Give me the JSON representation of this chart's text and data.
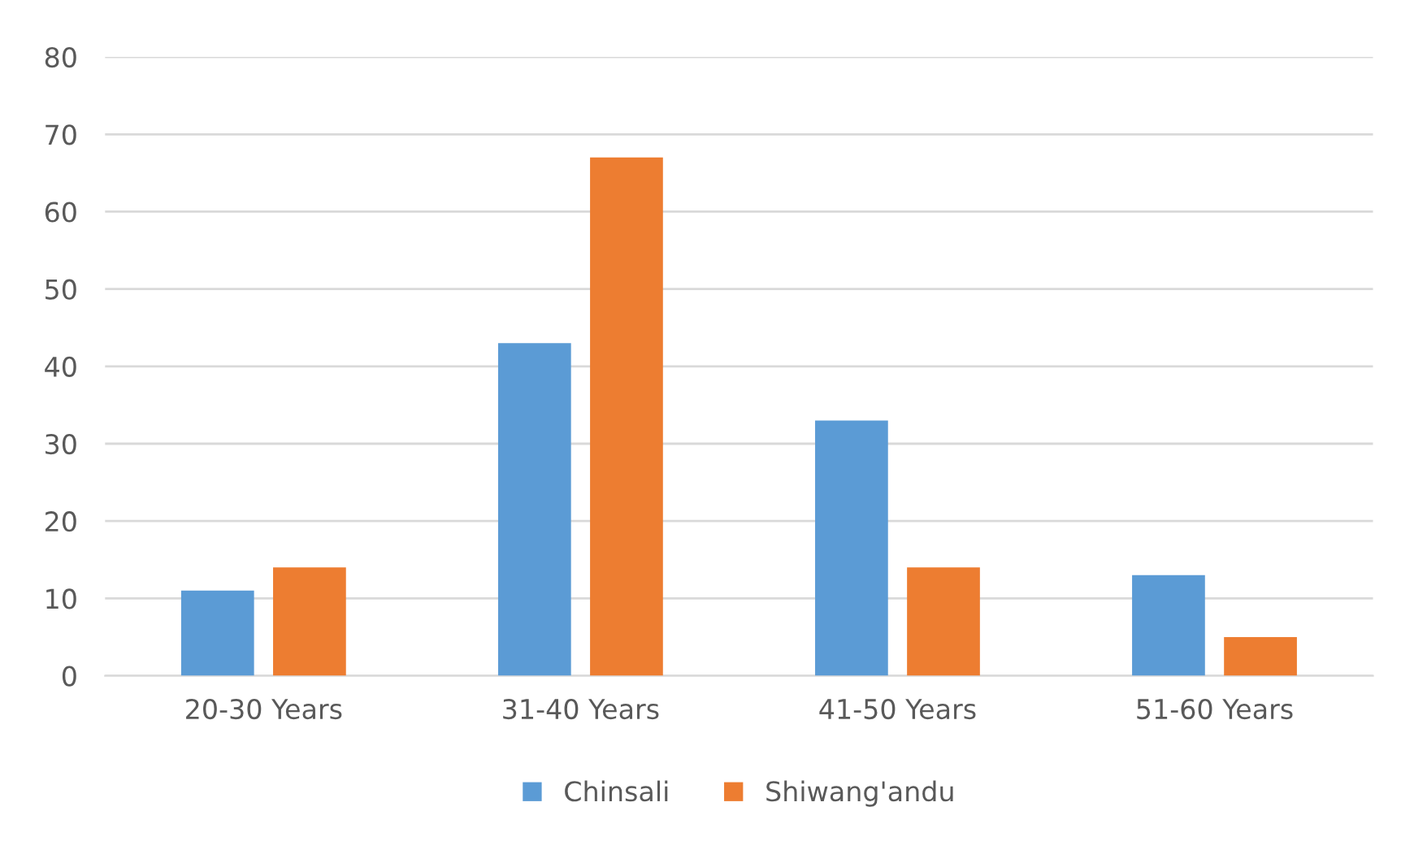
{
  "chart_data": {
    "type": "bar",
    "categories": [
      "20-30 Years",
      "31-40 Years",
      "41-50 Years",
      "51-60 Years"
    ],
    "series": [
      {
        "name": "Chinsali",
        "color": "#5b9bd5",
        "values": [
          11,
          43,
          33,
          13
        ]
      },
      {
        "name": "Shiwang'andu",
        "color": "#ed7d31",
        "values": [
          14,
          67,
          14,
          5
        ]
      }
    ],
    "ylim": [
      0,
      80
    ],
    "yticks": [
      0,
      10,
      20,
      30,
      40,
      50,
      60,
      70,
      80
    ],
    "grid": "y",
    "legend": "bottom"
  }
}
